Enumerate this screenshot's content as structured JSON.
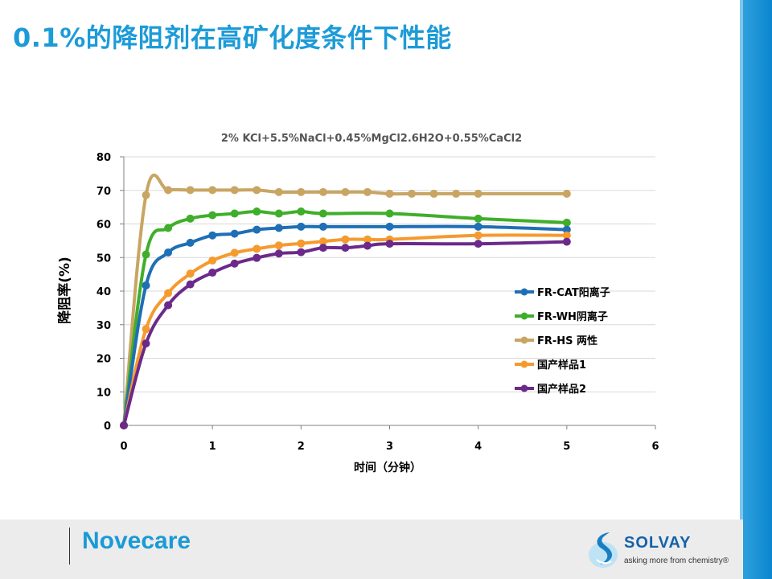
{
  "slide": {
    "title": "0.1%的降阻剂在高矿化度条件下性能"
  },
  "footer": {
    "brand": "Novecare",
    "logo_name": "SOLVAY",
    "logo_tagline": "asking more from chemistry®"
  },
  "colors": {
    "accent": "#1d9bd7",
    "bar": "#0a86cf"
  },
  "chart_data": {
    "type": "line",
    "title": "2% KCl+5.5%NaCl+0.45%MgCl2.6H2O+0.55%CaCl2",
    "xlabel": "时间（分钟）",
    "ylabel": "降阻率(%)",
    "xlim": [
      0,
      6
    ],
    "ylim": [
      0,
      80
    ],
    "xticks": [
      "0",
      "1",
      "2",
      "3",
      "4",
      "5",
      "6"
    ],
    "yticks": [
      "0",
      "10",
      "20",
      "30",
      "40",
      "50",
      "60",
      "70",
      "80"
    ],
    "grid": "horizontal",
    "legend_position": "right-center",
    "series": [
      {
        "name": "FR-CAT阳离子",
        "color": "#1f6fb5",
        "x": [
          0,
          0.25,
          0.5,
          0.75,
          1,
          1.25,
          1.5,
          1.75,
          2,
          2.25,
          3,
          4,
          5
        ],
        "y": [
          0,
          41.7,
          51.5,
          54.4,
          56.6,
          57.1,
          58.3,
          58.8,
          59.2,
          59.2,
          59.2,
          59.2,
          58.3
        ]
      },
      {
        "name": "FR-WH阴离子",
        "color": "#3fae2a",
        "x": [
          0,
          0.25,
          0.5,
          0.75,
          1,
          1.25,
          1.5,
          1.75,
          2,
          2.25,
          3,
          4,
          5
        ],
        "y": [
          0,
          50.9,
          58.8,
          61.6,
          62.6,
          63.1,
          63.7,
          63.1,
          63.7,
          63.1,
          63.1,
          61.6,
          60.4
        ]
      },
      {
        "name": "FR-HS 两性",
        "color": "#c9a563",
        "x": [
          0,
          0.25,
          0.5,
          0.75,
          1,
          1.25,
          1.5,
          1.75,
          2,
          2.25,
          2.5,
          2.75,
          3,
          3.25,
          3.5,
          3.75,
          4,
          5
        ],
        "y": [
          0,
          68.6,
          70.1,
          70.1,
          70.1,
          70.1,
          70.1,
          69.5,
          69.5,
          69.5,
          69.5,
          69.5,
          69.0,
          69.0,
          69.0,
          69.0,
          69.0,
          69.0
        ]
      },
      {
        "name": "国产样品1",
        "color": "#f59a2e",
        "x": [
          0,
          0.25,
          0.5,
          0.75,
          1,
          1.25,
          1.5,
          1.75,
          2,
          2.25,
          2.5,
          2.75,
          3,
          4,
          5
        ],
        "y": [
          0,
          28.7,
          39.4,
          45.2,
          49.1,
          51.4,
          52.6,
          53.6,
          54.2,
          54.8,
          55.4,
          55.4,
          55.4,
          56.6,
          56.6
        ]
      },
      {
        "name": "国产样品2",
        "color": "#6b2a8a",
        "x": [
          0,
          0.25,
          0.5,
          0.75,
          1,
          1.25,
          1.5,
          1.75,
          2,
          2.25,
          2.5,
          2.75,
          3,
          4,
          5
        ],
        "y": [
          0,
          24.4,
          35.8,
          42.0,
          45.5,
          48.2,
          49.9,
          51.2,
          51.6,
          52.9,
          52.9,
          53.5,
          54.1,
          54.1,
          54.7
        ]
      }
    ]
  }
}
